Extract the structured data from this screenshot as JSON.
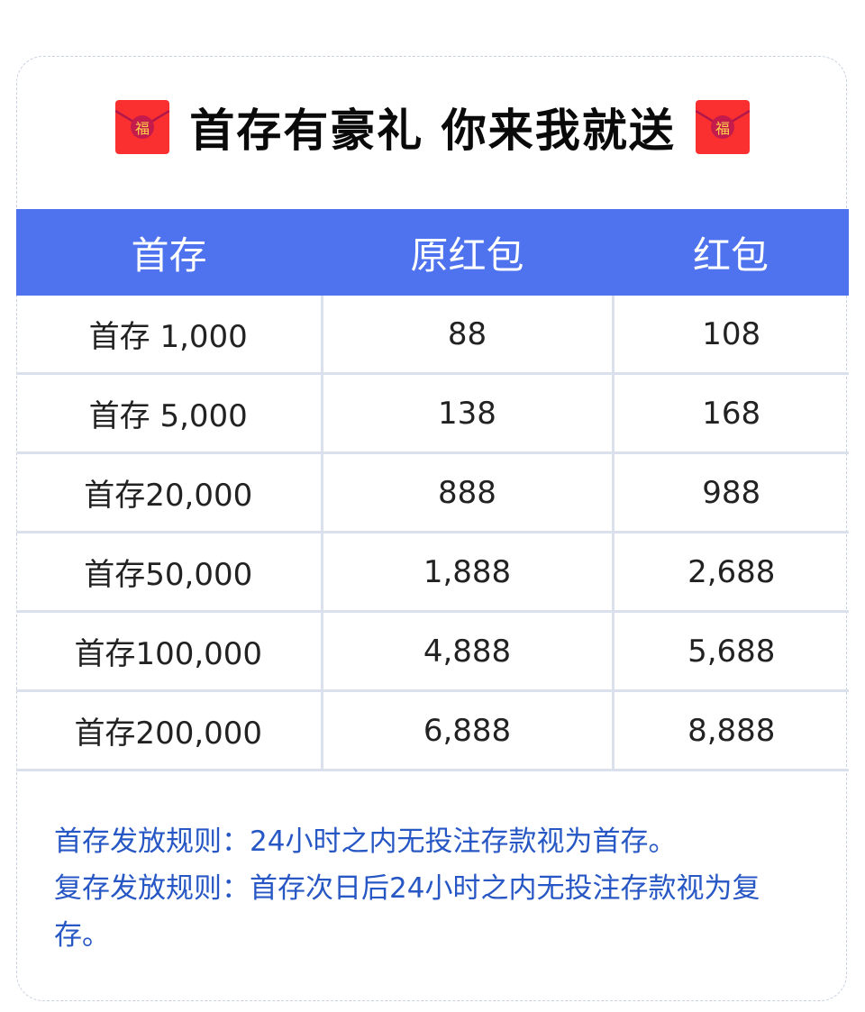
{
  "title": "首存有豪礼 你来我就送",
  "icon": {
    "name": "red-envelope-icon",
    "glyph": "福",
    "color": "#fa3030"
  },
  "colors": {
    "header_bg": "#4f72ee",
    "rules_text": "#2757c4"
  },
  "table": {
    "headers": [
      "首存",
      "原红包",
      "红包"
    ],
    "rows": [
      [
        "首存 1,000",
        "88",
        "108"
      ],
      [
        "首存 5,000",
        "138",
        "168"
      ],
      [
        "首存20,000",
        "888",
        "988"
      ],
      [
        "首存50,000",
        "1,888",
        "2,688"
      ],
      [
        "首存100,000",
        "4,888",
        "5,688"
      ],
      [
        "首存200,000",
        "6,888",
        "8,888"
      ]
    ]
  },
  "rules": [
    "首存发放规则：24小时之内无投注存款视为首存。",
    "复存发放规则：首存次日后24小时之内无投注存款视为复存。"
  ]
}
